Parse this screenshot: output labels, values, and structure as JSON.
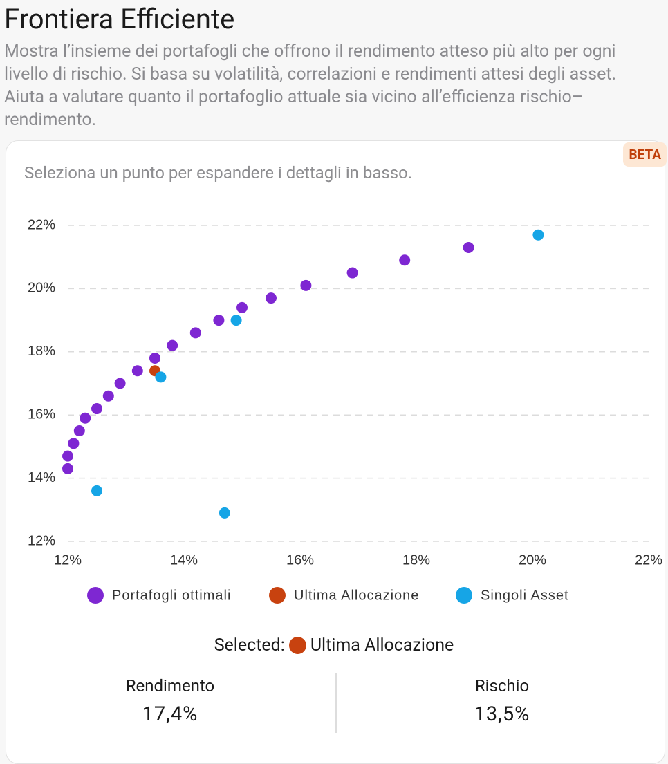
{
  "header": {
    "title": "Frontiera Efficiente",
    "description": "Mostra l’insieme dei portafogli che offrono il rendimento atteso più alto per ogni livello di rischio. Si basa su volatilità, correlazioni e rendimenti attesi degli asset. Aiuta a valutare quanto il portafoglio attuale sia vicino all’efficienza rischio–rendimento."
  },
  "card": {
    "badge": "BETA",
    "hint": "Seleziona un punto per espandere i dettagli in basso."
  },
  "chart_data": {
    "type": "scatter",
    "series": [
      {
        "name": "Portafogli ottimali",
        "color": "#7e27d2",
        "x": [
          12.0,
          12.0,
          12.1,
          12.2,
          12.3,
          12.5,
          12.7,
          12.9,
          13.2,
          13.5,
          13.8,
          14.2,
          14.6,
          15.0,
          15.5,
          16.1,
          16.9,
          17.8,
          18.9
        ],
        "values": [
          14.3,
          14.7,
          15.1,
          15.5,
          15.9,
          16.2,
          16.6,
          17.0,
          17.4,
          17.8,
          18.2,
          18.6,
          19.0,
          19.4,
          19.7,
          20.1,
          20.5,
          20.9,
          21.3
        ]
      },
      {
        "name": "Ultima Allocazione",
        "color": "#c8420f",
        "x": [
          13.5
        ],
        "values": [
          17.4
        ]
      },
      {
        "name": "Singoli Asset",
        "color": "#16a5e6",
        "x": [
          20.1,
          14.9,
          13.6,
          12.5,
          14.7
        ],
        "values": [
          21.7,
          19.0,
          17.2,
          13.6,
          12.9
        ]
      }
    ],
    "xlim": [
      12,
      22
    ],
    "ylim": [
      12,
      22
    ],
    "xticks": [
      {
        "value": 12,
        "label": "12%"
      },
      {
        "value": 14,
        "label": "14%"
      },
      {
        "value": 16,
        "label": "16%"
      },
      {
        "value": 18,
        "label": "18%"
      },
      {
        "value": 20,
        "label": "20%"
      },
      {
        "value": 22,
        "label": "22%"
      }
    ],
    "yticks": [
      {
        "value": 12,
        "label": "12%"
      },
      {
        "value": 14,
        "label": "14%"
      },
      {
        "value": 16,
        "label": "16%"
      },
      {
        "value": 18,
        "label": "18%"
      },
      {
        "value": 20,
        "label": "20%"
      },
      {
        "value": 22,
        "label": "22%"
      }
    ],
    "grid": true
  },
  "selection": {
    "label": "Selected:",
    "stats": [
      {
        "label": "Rendimento",
        "value": "17,4%"
      },
      {
        "label": "Rischio",
        "value": "13,5%"
      }
    ]
  }
}
